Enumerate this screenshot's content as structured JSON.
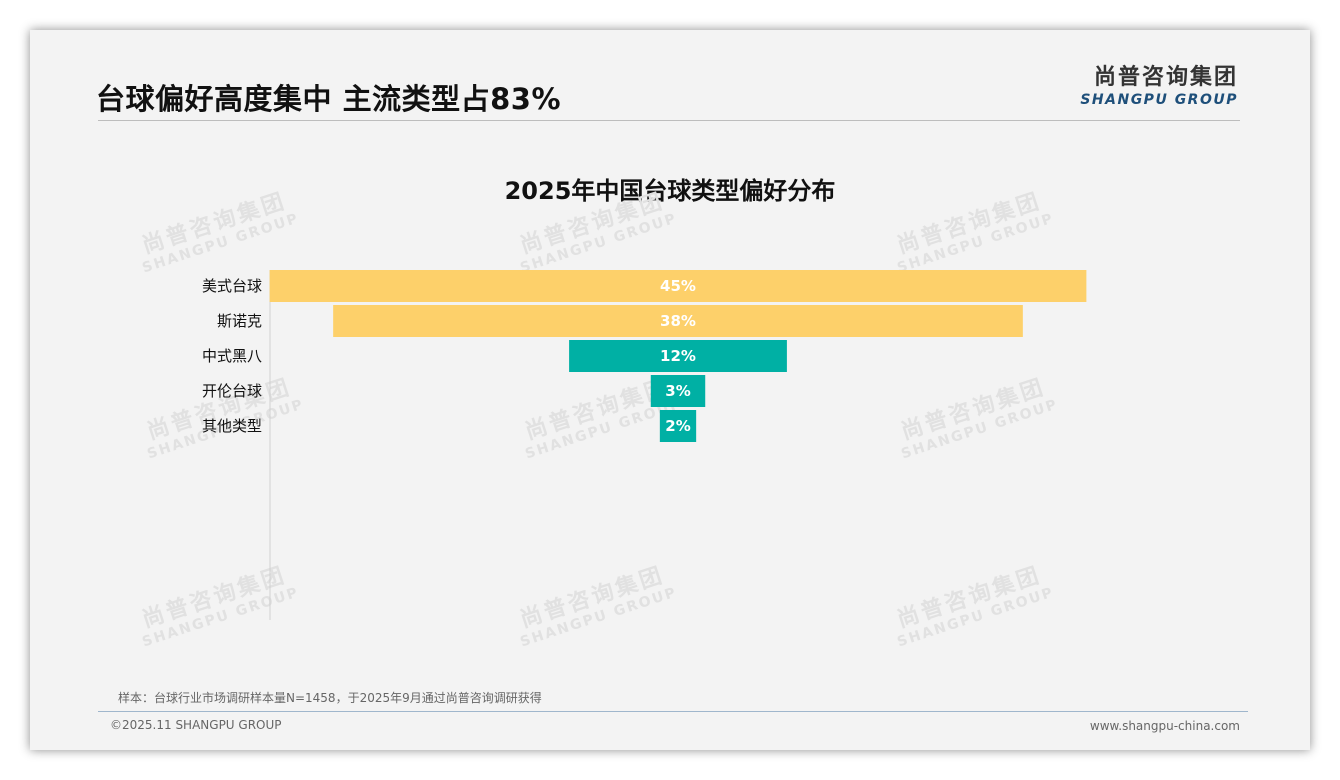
{
  "headline": "台球偏好高度集中 主流类型占83%",
  "logo": {
    "cn": "尚普咨询集团",
    "en": "SHANGPU GROUP"
  },
  "watermark": {
    "cn": "尚普咨询集团",
    "en": "SHANGPU GROUP"
  },
  "chart_data": {
    "type": "bar",
    "subtype": "centered-funnel",
    "title": "2025年中国台球类型偏好分布",
    "categories": [
      "美式台球",
      "斯诺克",
      "中式黑八",
      "开伦台球",
      "其他类型"
    ],
    "values": [
      45,
      38,
      12,
      3,
      2
    ],
    "value_labels": [
      "45%",
      "38%",
      "12%",
      "3%",
      "2%"
    ],
    "colors": [
      "#fdd06a",
      "#fdd06a",
      "#00b0a4",
      "#00b0a4",
      "#00b0a4"
    ],
    "unit": "%",
    "grid": false,
    "legend": "none"
  },
  "footnote": "样本：台球行业市场调研样本量N=1458，于2025年9月通过尚普咨询调研获得",
  "copyright": "©2025.11 SHANGPU GROUP",
  "website": "www.shangpu-china.com"
}
